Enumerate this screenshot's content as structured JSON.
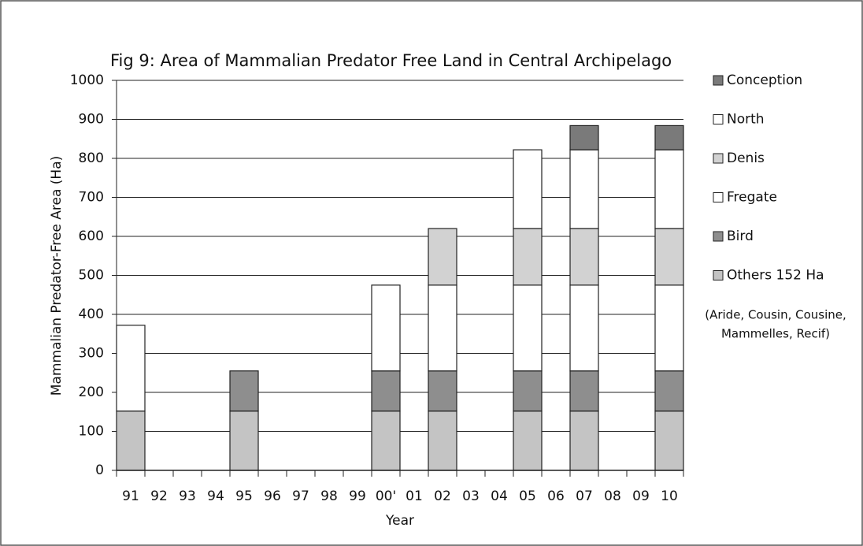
{
  "chart_data": {
    "type": "stacked_bar",
    "title": "Fig 9: Area of Mammalian Predator Free Land in Central Archipelago",
    "x_label": "Year",
    "y_label": "Mammalian Predator-Free Area (Ha)",
    "categories": [
      "91",
      "92",
      "93",
      "94",
      "95",
      "96",
      "97",
      "98",
      "99",
      "00'",
      "01",
      "02",
      "03",
      "04",
      "05",
      "06",
      "07",
      "08",
      "09",
      "10"
    ],
    "series": [
      {
        "name": "Others 152 Ha",
        "color": "#c4c4c4",
        "values": [
          152,
          null,
          null,
          null,
          152,
          null,
          null,
          null,
          null,
          152,
          null,
          152,
          null,
          null,
          152,
          null,
          152,
          null,
          null,
          152
        ]
      },
      {
        "name": "Bird",
        "color": "#8e8e8e",
        "values": [
          null,
          null,
          null,
          null,
          103,
          null,
          null,
          null,
          null,
          103,
          null,
          103,
          null,
          null,
          103,
          null,
          103,
          null,
          null,
          103
        ]
      },
      {
        "name": "Fregate",
        "color": "#ffffff",
        "values": [
          220,
          null,
          null,
          null,
          null,
          null,
          null,
          null,
          null,
          220,
          null,
          220,
          null,
          null,
          220,
          null,
          220,
          null,
          null,
          220
        ]
      },
      {
        "name": "Denis",
        "color": "#d2d2d2",
        "values": [
          null,
          null,
          null,
          null,
          null,
          null,
          null,
          null,
          null,
          null,
          null,
          145,
          null,
          null,
          145,
          null,
          145,
          null,
          null,
          145
        ]
      },
      {
        "name": "North",
        "color": "#ffffff",
        "values": [
          null,
          null,
          null,
          null,
          null,
          null,
          null,
          null,
          null,
          null,
          null,
          null,
          null,
          null,
          202,
          null,
          202,
          null,
          null,
          202
        ]
      },
      {
        "name": "Conception",
        "color": "#7a7a7a",
        "values": [
          null,
          null,
          null,
          null,
          null,
          null,
          null,
          null,
          null,
          null,
          null,
          null,
          null,
          null,
          null,
          null,
          62,
          null,
          null,
          62
        ]
      }
    ],
    "legend_note": [
      "(Aride, Cousin, Cousine,",
      "Mammelles, Recif)"
    ],
    "ylim": [
      0,
      1000
    ],
    "yticks": [
      0,
      100,
      200,
      300,
      400,
      500,
      600,
      700,
      800,
      900,
      1000
    ],
    "grid": true,
    "legend": "right"
  }
}
